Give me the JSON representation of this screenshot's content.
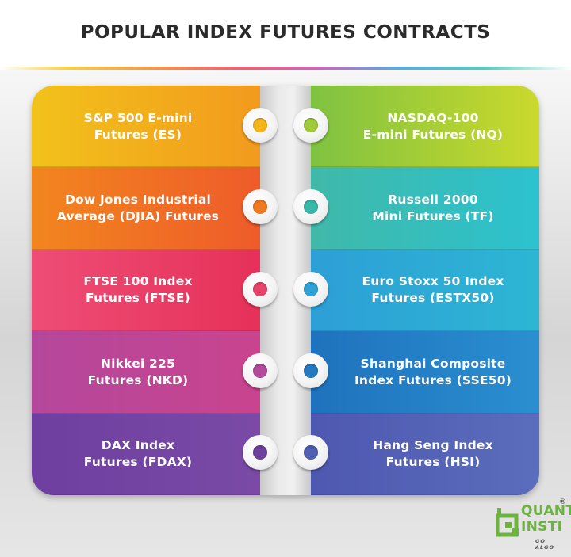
{
  "title": "POPULAR INDEX FUTURES CONTRACTS",
  "contracts": [
    {
      "left": {
        "label": "S&P 500 E-mini\nFutures (ES)",
        "color_from": "#f2c21a",
        "color_to": "#f29a1e",
        "hole": "#f5b61c"
      },
      "right": {
        "label": "NASDAQ-100\nE-mini Futures (NQ)",
        "color_from": "#7fc241",
        "color_to": "#cbd92c",
        "hole": "#9fcb3a"
      }
    },
    {
      "left": {
        "label": "Dow Jones Industrial\nAverage (DJIA) Futures",
        "color_from": "#f2861e",
        "color_to": "#ee5b2a",
        "hole": "#f07a22"
      },
      "right": {
        "label": "Russell 2000\nMini Futures (TF)",
        "color_from": "#40b9a9",
        "color_to": "#2cc2cf",
        "hole": "#38b8a8"
      }
    },
    {
      "left": {
        "label": "FTSE 100 Index\nFutures (FTSE)",
        "color_from": "#ee4d76",
        "color_to": "#e63159",
        "hole": "#e8436a"
      },
      "right": {
        "label": "Euro Stoxx 50 Index\nFutures (ESTX50)",
        "color_from": "#2d9fd6",
        "color_to": "#2db6d4",
        "hole": "#2ea2d4"
      }
    },
    {
      "left": {
        "label": "Nikkei 225\nFutures (NKD)",
        "color_from": "#b4479c",
        "color_to": "#c9448e",
        "hole": "#b34a9a"
      },
      "right": {
        "label": "Shanghai Composite\nIndex Futures (SSE50)",
        "color_from": "#1f72bd",
        "color_to": "#2a8fd0",
        "hole": "#2479c0"
      }
    },
    {
      "left": {
        "label": "DAX Index\nFutures (FDAX)",
        "color_from": "#6e3fa0",
        "color_to": "#7a4aa6",
        "hole": "#6d409e"
      },
      "right": {
        "label": "Hang Seng Index\nFutures (HSI)",
        "color_from": "#4e58b0",
        "color_to": "#5b6dbc",
        "hole": "#5160b2"
      }
    }
  ],
  "logo": {
    "line1": "QUANT",
    "line2": "INSTI",
    "tagline": "GO ALGO",
    "registered": "®",
    "brand_color": "#6cb33f"
  }
}
